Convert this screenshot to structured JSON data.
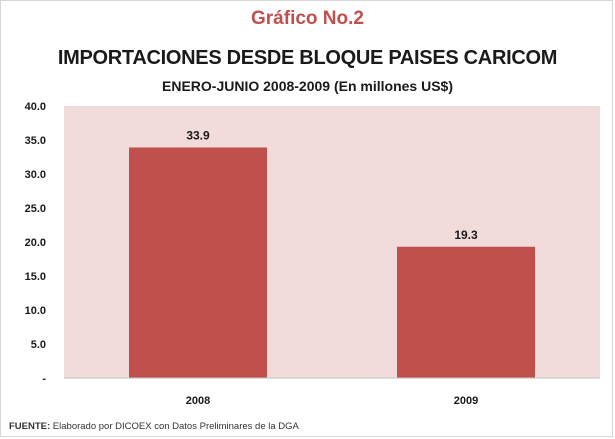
{
  "header": {
    "title": "Gráfico No.2",
    "subtitle": "IMPORTACIONES DESDE BLOQUE PAISES CARICOM",
    "subtitle2": "ENERO-JUNIO 2008-2009 (En millones US$)"
  },
  "footer": {
    "source_label": "FUENTE:",
    "source_text": " Elaborado  por DICOEX con Datos Preliminares  de la DGA"
  },
  "colors": {
    "bar": "#c0504d",
    "plot_background": "#f2dcdb",
    "title": "#c0504d"
  },
  "chart_data": {
    "type": "bar",
    "title": "IMPORTACIONES DESDE BLOQUE PAISES CARICOM",
    "categories": [
      "2008",
      "2009"
    ],
    "values": [
      33.9,
      19.3
    ],
    "data_labels": [
      "33.9",
      "19.3"
    ],
    "ylim": [
      0,
      40
    ],
    "yticks": [
      0,
      5,
      10,
      15,
      20,
      25,
      30,
      35,
      40
    ],
    "ytick_labels": [
      "-",
      "5.0",
      "10.0",
      "15.0",
      "20.0",
      "25.0",
      "30.0",
      "35.0",
      "40.0"
    ],
    "grid": false,
    "legend": "none"
  }
}
